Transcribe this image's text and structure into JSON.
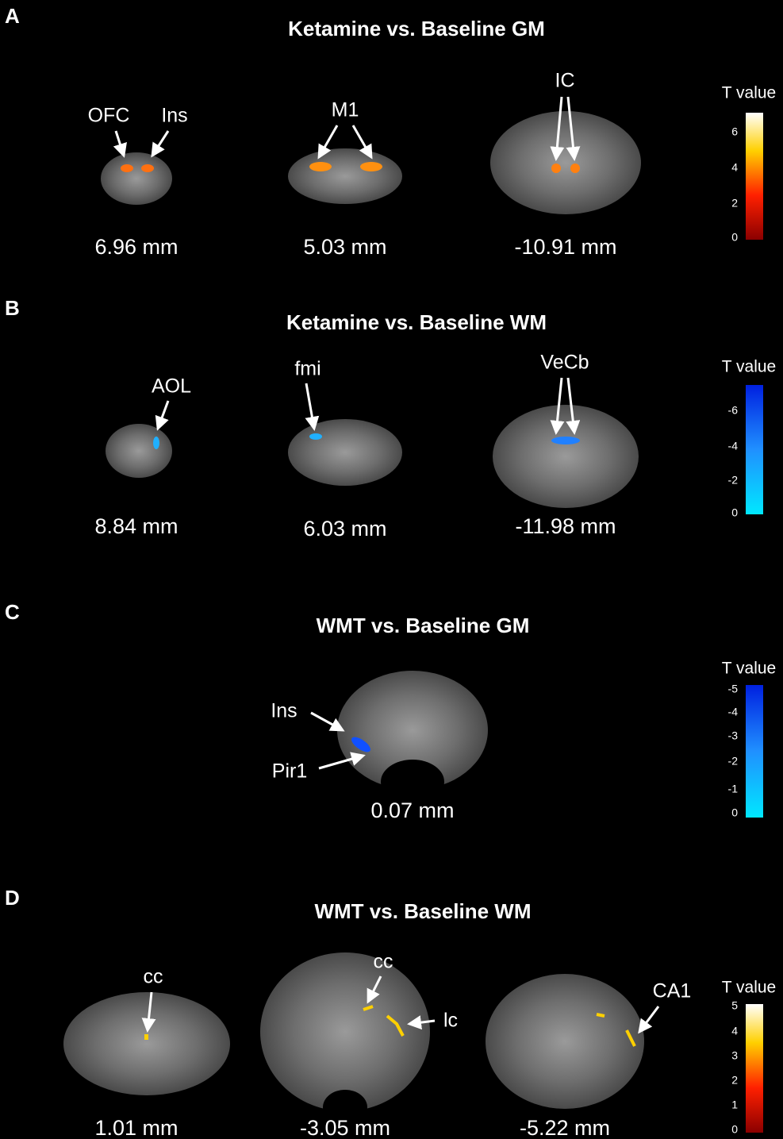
{
  "panels": [
    {
      "letter": "A",
      "title": "Ketamine vs. Baseline GM",
      "slices": [
        {
          "labels": [
            "OFC",
            "Ins"
          ],
          "position": "6.96 mm"
        },
        {
          "labels": [
            "M1"
          ],
          "position": "5.03 mm"
        },
        {
          "labels": [
            "IC"
          ],
          "position": "-10.91 mm"
        }
      ],
      "colorbar": {
        "title": "T value",
        "ticks": [
          6,
          4,
          2,
          0
        ]
      }
    },
    {
      "letter": "B",
      "title": "Ketamine vs. Baseline WM",
      "slices": [
        {
          "labels": [
            "AOL"
          ],
          "position": "8.84 mm"
        },
        {
          "labels": [
            "fmi"
          ],
          "position": "6.03 mm"
        },
        {
          "labels": [
            "VeCb"
          ],
          "position": "-11.98 mm"
        }
      ],
      "colorbar": {
        "title": "T value",
        "ticks": [
          -6,
          -4,
          -2,
          0
        ]
      }
    },
    {
      "letter": "C",
      "title": "WMT vs. Baseline GM",
      "slices": [
        {
          "labels": [
            "Ins",
            "Pir1"
          ],
          "position": "0.07 mm"
        }
      ],
      "colorbar": {
        "title": "T value",
        "ticks": [
          -5,
          -4,
          -3,
          -2,
          -1,
          0
        ]
      }
    },
    {
      "letter": "D",
      "title": "WMT vs. Baseline WM",
      "slices": [
        {
          "labels": [
            "cc"
          ],
          "position": "1.01 mm"
        },
        {
          "labels": [
            "cc",
            "lc"
          ],
          "position": "-3.05 mm"
        },
        {
          "labels": [
            "CA1"
          ],
          "position": "-5.22 mm"
        }
      ],
      "colorbar": {
        "title": "T value",
        "ticks": [
          5,
          4,
          3,
          2,
          1,
          0
        ]
      }
    }
  ]
}
